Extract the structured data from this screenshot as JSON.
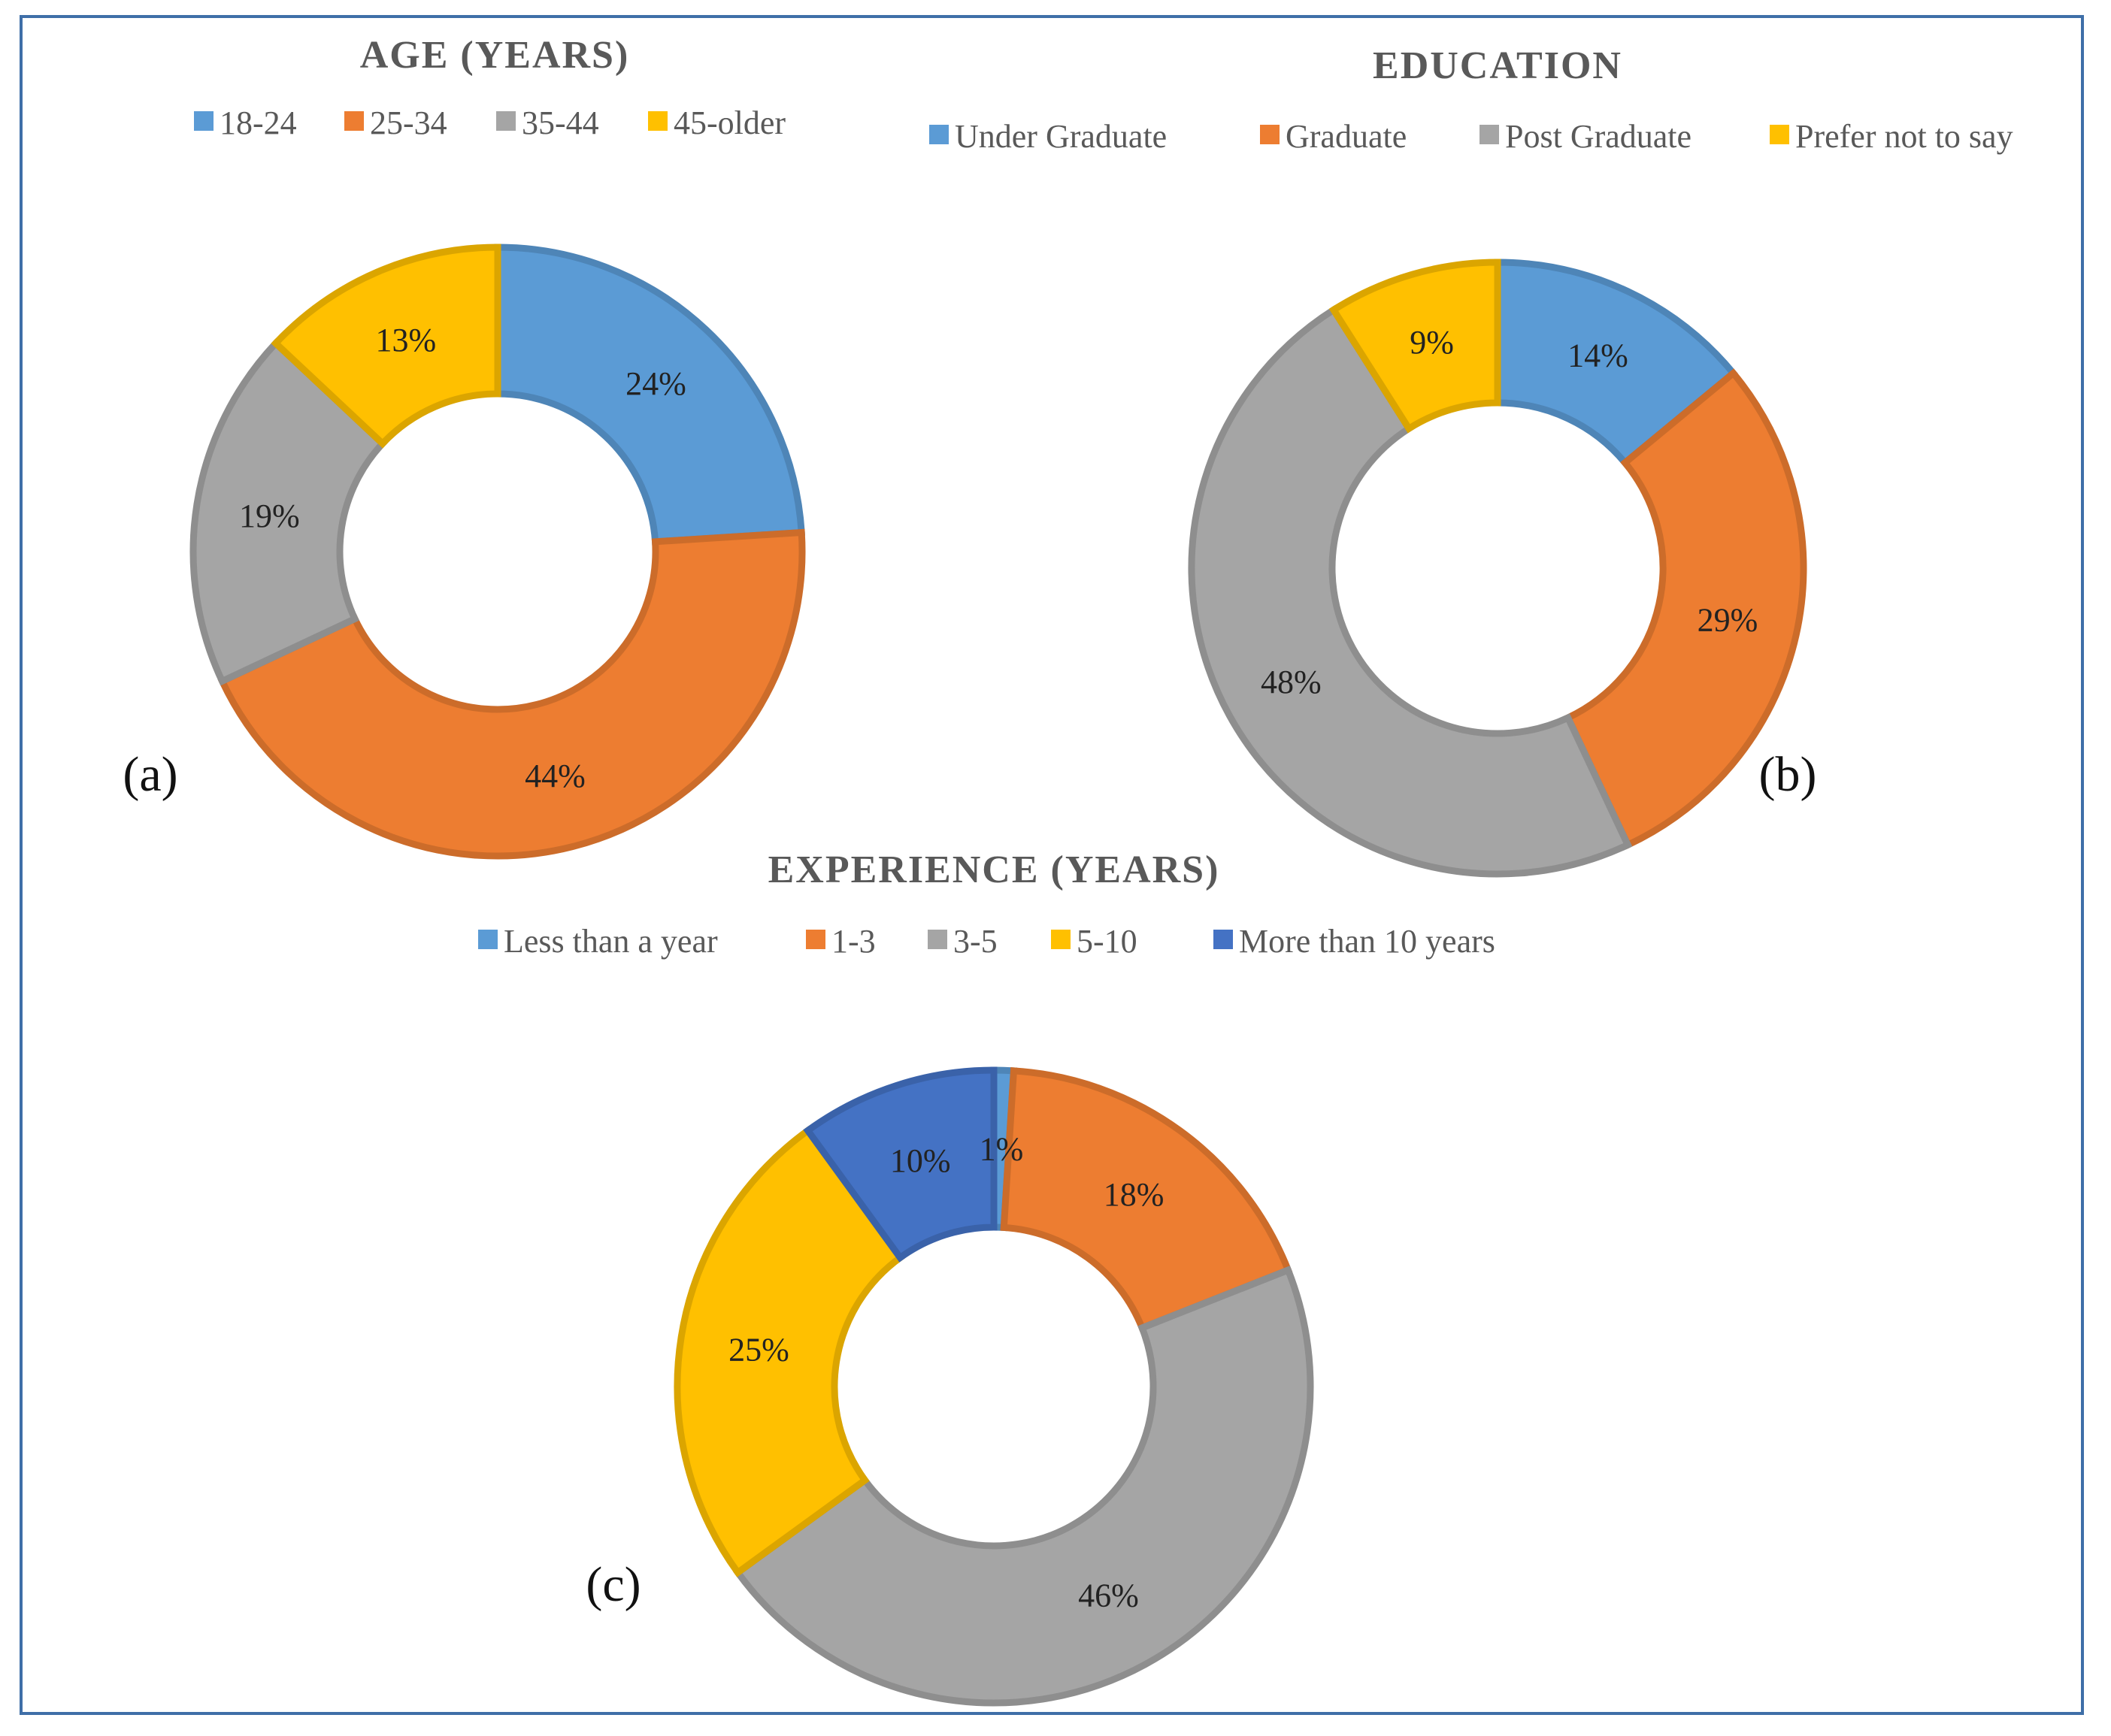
{
  "chart_data": [
    {
      "type": "pie",
      "variant": "donut",
      "panel_label": "(a)",
      "title": "AGE (YEARS)",
      "categories": [
        "18-24",
        "25-34",
        "35-44",
        "45-older"
      ],
      "values": [
        24,
        44,
        19,
        13
      ],
      "value_labels": [
        "24%",
        "44%",
        "19%",
        "13%"
      ],
      "colors": [
        "#5b9bd5",
        "#ed7d31",
        "#a5a5a5",
        "#ffc000"
      ],
      "legend_position": "top"
    },
    {
      "type": "pie",
      "variant": "donut",
      "panel_label": "(b)",
      "title": "EDUCATION",
      "categories": [
        "Under Graduate",
        "Graduate",
        "Post Graduate",
        "Prefer not to say"
      ],
      "values": [
        14,
        29,
        48,
        9
      ],
      "value_labels": [
        "14%",
        "29%",
        "48%",
        "9%"
      ],
      "colors": [
        "#5b9bd5",
        "#ed7d31",
        "#a5a5a5",
        "#ffc000"
      ],
      "legend_position": "top"
    },
    {
      "type": "pie",
      "variant": "donut",
      "panel_label": "(c)",
      "title": "EXPERIENCE (YEARS)",
      "categories": [
        "Less than a year",
        "1-3",
        "3-5",
        "5-10",
        "More than 10 years"
      ],
      "values": [
        1,
        18,
        46,
        25,
        10
      ],
      "value_labels": [
        "1%",
        "18%",
        "46%",
        "25%",
        "10%"
      ],
      "colors": [
        "#5b9bd5",
        "#ed7d31",
        "#a5a5a5",
        "#ffc000",
        "#4472c4"
      ],
      "legend_position": "top"
    }
  ]
}
